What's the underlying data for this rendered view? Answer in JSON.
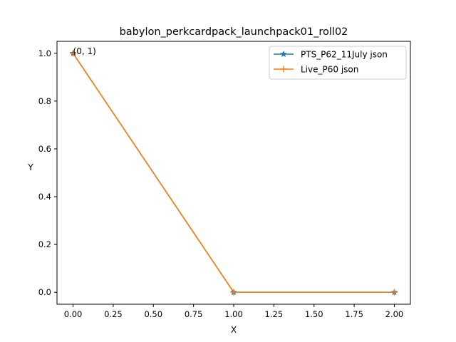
{
  "chart_data": {
    "type": "line",
    "title": "babylon_perkcardpack_launchpack01_roll02",
    "xlabel": "X",
    "ylabel": "Y",
    "xlim": [
      -0.1,
      2.1
    ],
    "ylim": [
      -0.05,
      1.05
    ],
    "x_ticks": [
      "0.00",
      "0.25",
      "0.50",
      "0.75",
      "1.00",
      "1.25",
      "1.50",
      "1.75",
      "2.00"
    ],
    "y_ticks": [
      "0.0",
      "0.2",
      "0.4",
      "0.6",
      "0.8",
      "1.0"
    ],
    "grid": false,
    "legend_position": "top-right",
    "series": [
      {
        "name": "PTS_P62_11July json",
        "color": "#1f77b4",
        "marker": "star",
        "x": [
          0,
          1,
          2
        ],
        "y": [
          1,
          0,
          0
        ]
      },
      {
        "name": "Live_P60 json",
        "color": "#ff7f0e",
        "marker": "plus",
        "x": [
          0,
          1,
          2
        ],
        "y": [
          1,
          0,
          0
        ]
      }
    ],
    "annotations": [
      {
        "text": "(0, 1)",
        "x": 0,
        "y": 1
      }
    ]
  }
}
